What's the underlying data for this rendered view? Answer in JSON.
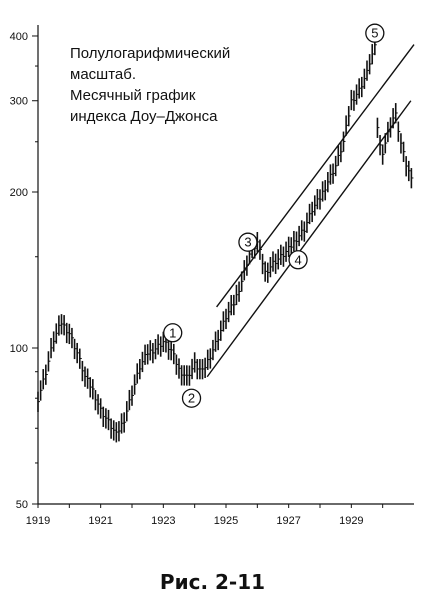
{
  "figure_caption": "Рис. 2-11",
  "chart_data": {
    "type": "bar",
    "subtype": "monthly-price-bars-with-trend-channel",
    "title": "",
    "annotation_lines": [
      "Полулогарифмический",
      "масштаб.",
      "Месячный график",
      "индекса Доу–Джонса"
    ],
    "y_scale": "log",
    "ylim": [
      50,
      420
    ],
    "y_ticks": [
      50,
      100,
      200,
      300,
      400
    ],
    "y_tick_labels": [
      "50",
      "100",
      "200",
      "300",
      "400"
    ],
    "xlim": [
      1919.0,
      1931.0
    ],
    "x_ticks": [
      1919,
      1921,
      1923,
      1925,
      1927,
      1929
    ],
    "x_tick_labels": [
      "1919",
      "1921",
      "1923",
      "1925",
      "1927",
      "1929"
    ],
    "grid": false,
    "series": [
      {
        "time": [
          1919.0,
          1919.25,
          1919.5,
          1919.75,
          1920.0,
          1920.25,
          1920.5,
          1920.75,
          1921.0,
          1921.25,
          1921.5,
          1921.75,
          1922.0,
          1922.25,
          1922.5,
          1922.75,
          1923.0,
          1923.25,
          1923.5,
          1923.75,
          1924.0,
          1924.25,
          1924.5,
          1924.75,
          1925.0,
          1925.25,
          1925.5,
          1925.75,
          1926.0,
          1926.25,
          1926.5,
          1926.75,
          1927.0,
          1927.25,
          1927.5,
          1927.75,
          1928.0,
          1928.25,
          1928.5,
          1928.75,
          1929.0,
          1929.25,
          1929.5,
          1929.6,
          1929.75,
          1929.85,
          1930.0,
          1930.25,
          1930.4,
          1930.6,
          1930.8,
          1930.95
        ],
        "value": [
          80,
          90,
          104,
          112,
          107,
          98,
          88,
          83,
          76,
          72,
          68,
          73,
          82,
          92,
          98,
          100,
          103,
          99,
          91,
          88,
          93,
          90,
          97,
          105,
          115,
          122,
          135,
          152,
          160,
          140,
          146,
          150,
          155,
          163,
          170,
          185,
          195,
          210,
          225,
          250,
          300,
          315,
          340,
          360,
          380,
          250,
          240,
          270,
          285,
          245,
          220,
          215
        ]
      }
    ],
    "channel_lines": [
      {
        "from": [
          1924.7,
          120
        ],
        "to": [
          1931.0,
          385
        ]
      },
      {
        "from": [
          1924.4,
          88
        ],
        "to": [
          1930.9,
          300
        ]
      }
    ],
    "markers": [
      {
        "label": "1",
        "x": 1923.3,
        "y": 107
      },
      {
        "label": "2",
        "x": 1923.9,
        "y": 80
      },
      {
        "label": "3",
        "x": 1925.7,
        "y": 160
      },
      {
        "label": "4",
        "x": 1927.3,
        "y": 148
      },
      {
        "label": "5",
        "x": 1929.75,
        "y": 405
      }
    ]
  }
}
